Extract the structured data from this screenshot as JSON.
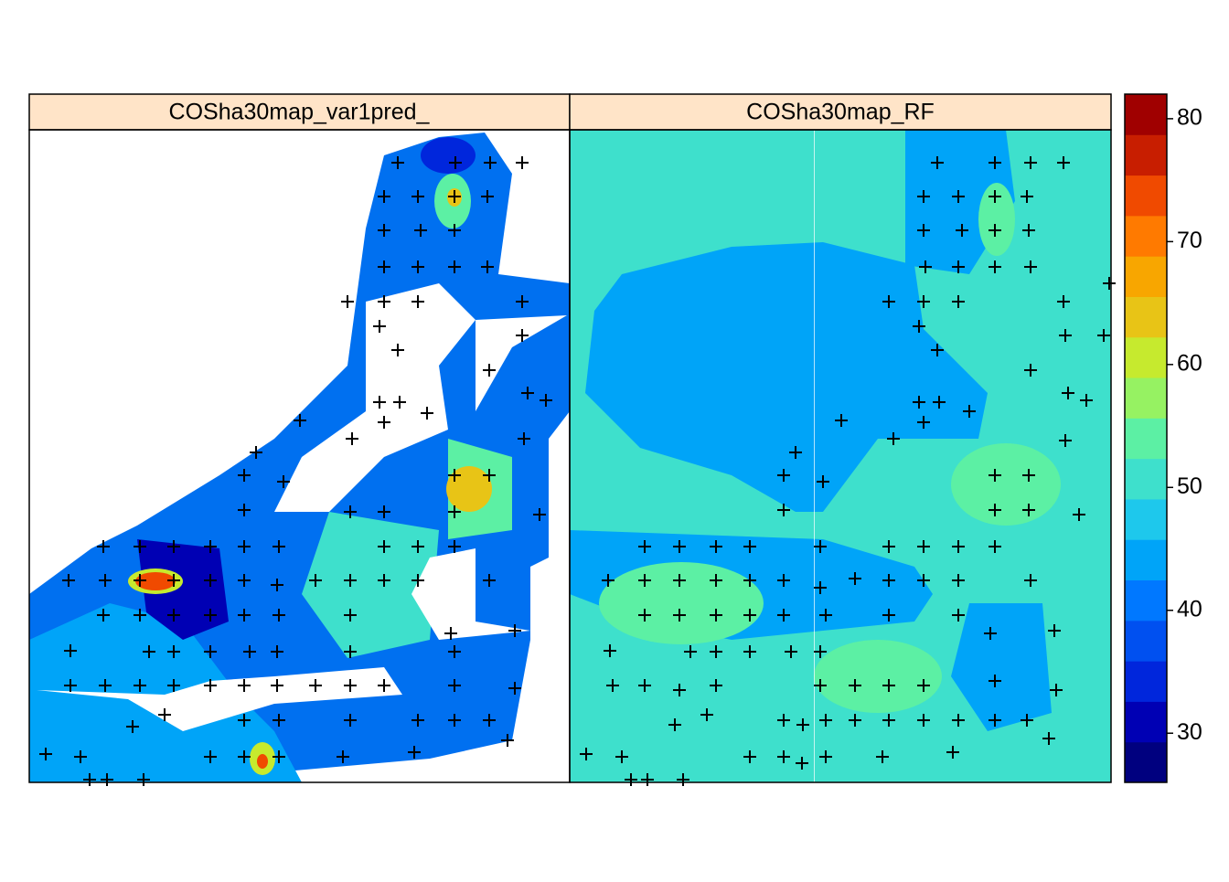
{
  "panels": [
    {
      "title": "COSha30map_var1pred_"
    },
    {
      "title": "COSha30map_RF"
    }
  ],
  "legend": {
    "lim": [
      26,
      82
    ],
    "ticks": [
      30,
      40,
      50,
      60,
      70,
      80
    ],
    "colors": [
      "#00007f",
      "#0000b4",
      "#0026dc",
      "#0050f0",
      "#0078ff",
      "#00a4f8",
      "#1ec8ec",
      "#3ee0cc",
      "#5cf0a4",
      "#96f262",
      "#c6ea2e",
      "#e8c416",
      "#f8a600",
      "#ff7a00",
      "#f04a00",
      "#c81e00",
      "#a00000"
    ]
  }
}
